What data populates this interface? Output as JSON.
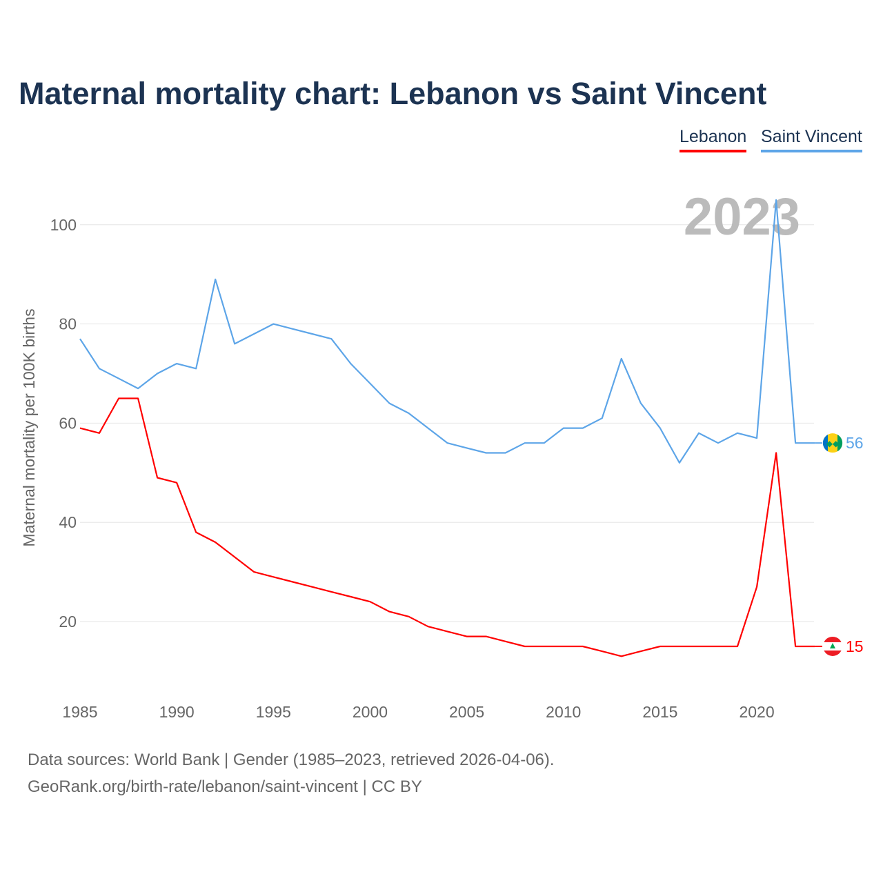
{
  "chart_data": {
    "type": "line",
    "title": "Maternal mortality chart: Lebanon vs Saint Vincent",
    "xlabel": "",
    "ylabel": "Maternal mortality per 100K births",
    "year_label": "2023",
    "x": [
      1985,
      1986,
      1987,
      1988,
      1989,
      1990,
      1991,
      1992,
      1993,
      1994,
      1995,
      1996,
      1997,
      1998,
      1999,
      2000,
      2001,
      2002,
      2003,
      2004,
      2005,
      2006,
      2007,
      2008,
      2009,
      2010,
      2011,
      2012,
      2013,
      2014,
      2015,
      2016,
      2017,
      2018,
      2019,
      2020,
      2021,
      2022,
      2023
    ],
    "series": [
      {
        "name": "Lebanon",
        "color": "#ff0000",
        "end_label": "15",
        "values": [
          59,
          58,
          65,
          65,
          49,
          48,
          38,
          36,
          33,
          30,
          29,
          28,
          27,
          26,
          25,
          24,
          22,
          21,
          19,
          18,
          17,
          17,
          16,
          15,
          15,
          15,
          15,
          14,
          13,
          14,
          15,
          15,
          15,
          15,
          15,
          27,
          54,
          15,
          15
        ]
      },
      {
        "name": "Saint Vincent",
        "color": "#5da5e8",
        "end_label": "56",
        "values": [
          77,
          71,
          69,
          67,
          70,
          72,
          71,
          89,
          76,
          78,
          80,
          79,
          78,
          77,
          72,
          68,
          64,
          62,
          59,
          56,
          55,
          54,
          54,
          56,
          56,
          59,
          59,
          61,
          73,
          64,
          59,
          52,
          58,
          56,
          58,
          57,
          105,
          56,
          56
        ]
      }
    ],
    "xticks": [
      "1985",
      "1990",
      "1995",
      "2000",
      "2005",
      "2010",
      "2015",
      "2020"
    ],
    "yticks": [
      "20",
      "40",
      "60",
      "80",
      "100"
    ],
    "ylim": [
      6,
      110
    ],
    "xlim": [
      1985,
      2023
    ],
    "grid": true,
    "legend_position": "top-right"
  },
  "footer": {
    "line1": "Data sources: World Bank | Gender (1985–2023, retrieved 2026-04-06).",
    "line2": "GeoRank.org/birth-rate/lebanon/saint-vincent | CC BY"
  }
}
